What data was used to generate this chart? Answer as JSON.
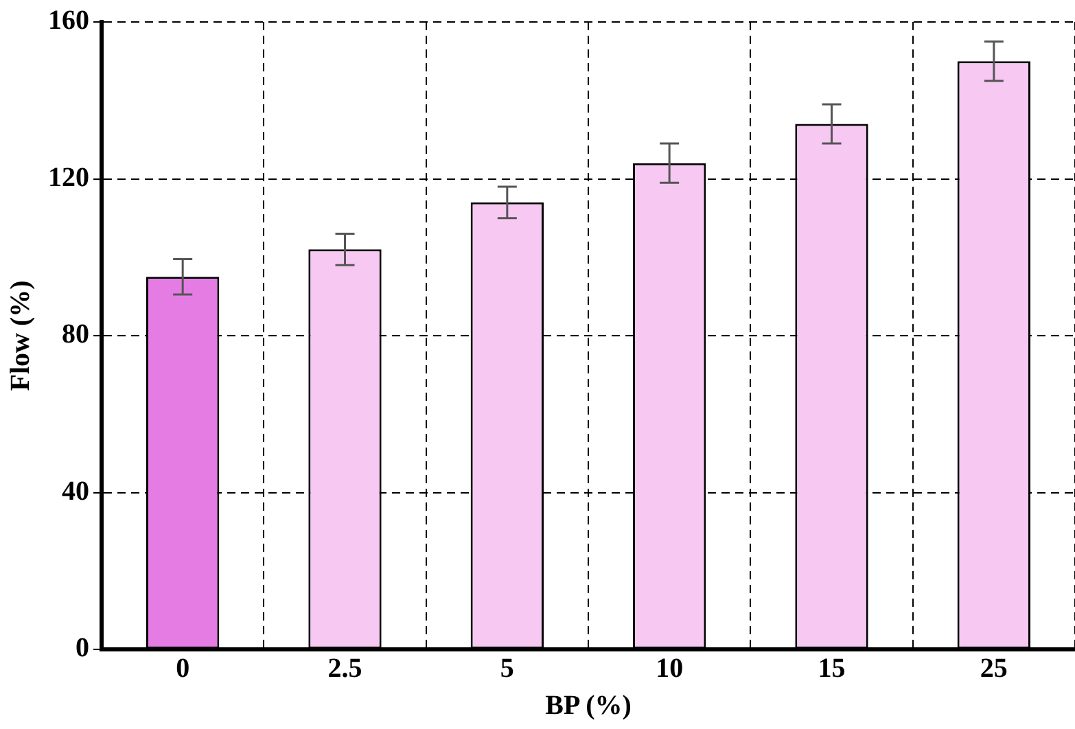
{
  "chart_data": {
    "type": "bar",
    "xlabel": "BP (%)",
    "ylabel": "Flow (%)",
    "categories": [
      "0",
      "2.5",
      "5",
      "10",
      "15",
      "25"
    ],
    "values": [
      95,
      102,
      114,
      124,
      134,
      150
    ],
    "errors": [
      4.5,
      4,
      4,
      5,
      5,
      5
    ],
    "colors": [
      "#e47ce4",
      "#f6c8f2",
      "#f6c8f2",
      "#f6c8f2",
      "#f6c8f2",
      "#f6c8f2"
    ],
    "ylim": [
      0,
      160
    ],
    "yticks": [
      0,
      40,
      80,
      120,
      160
    ],
    "grid": true,
    "legend": false
  }
}
